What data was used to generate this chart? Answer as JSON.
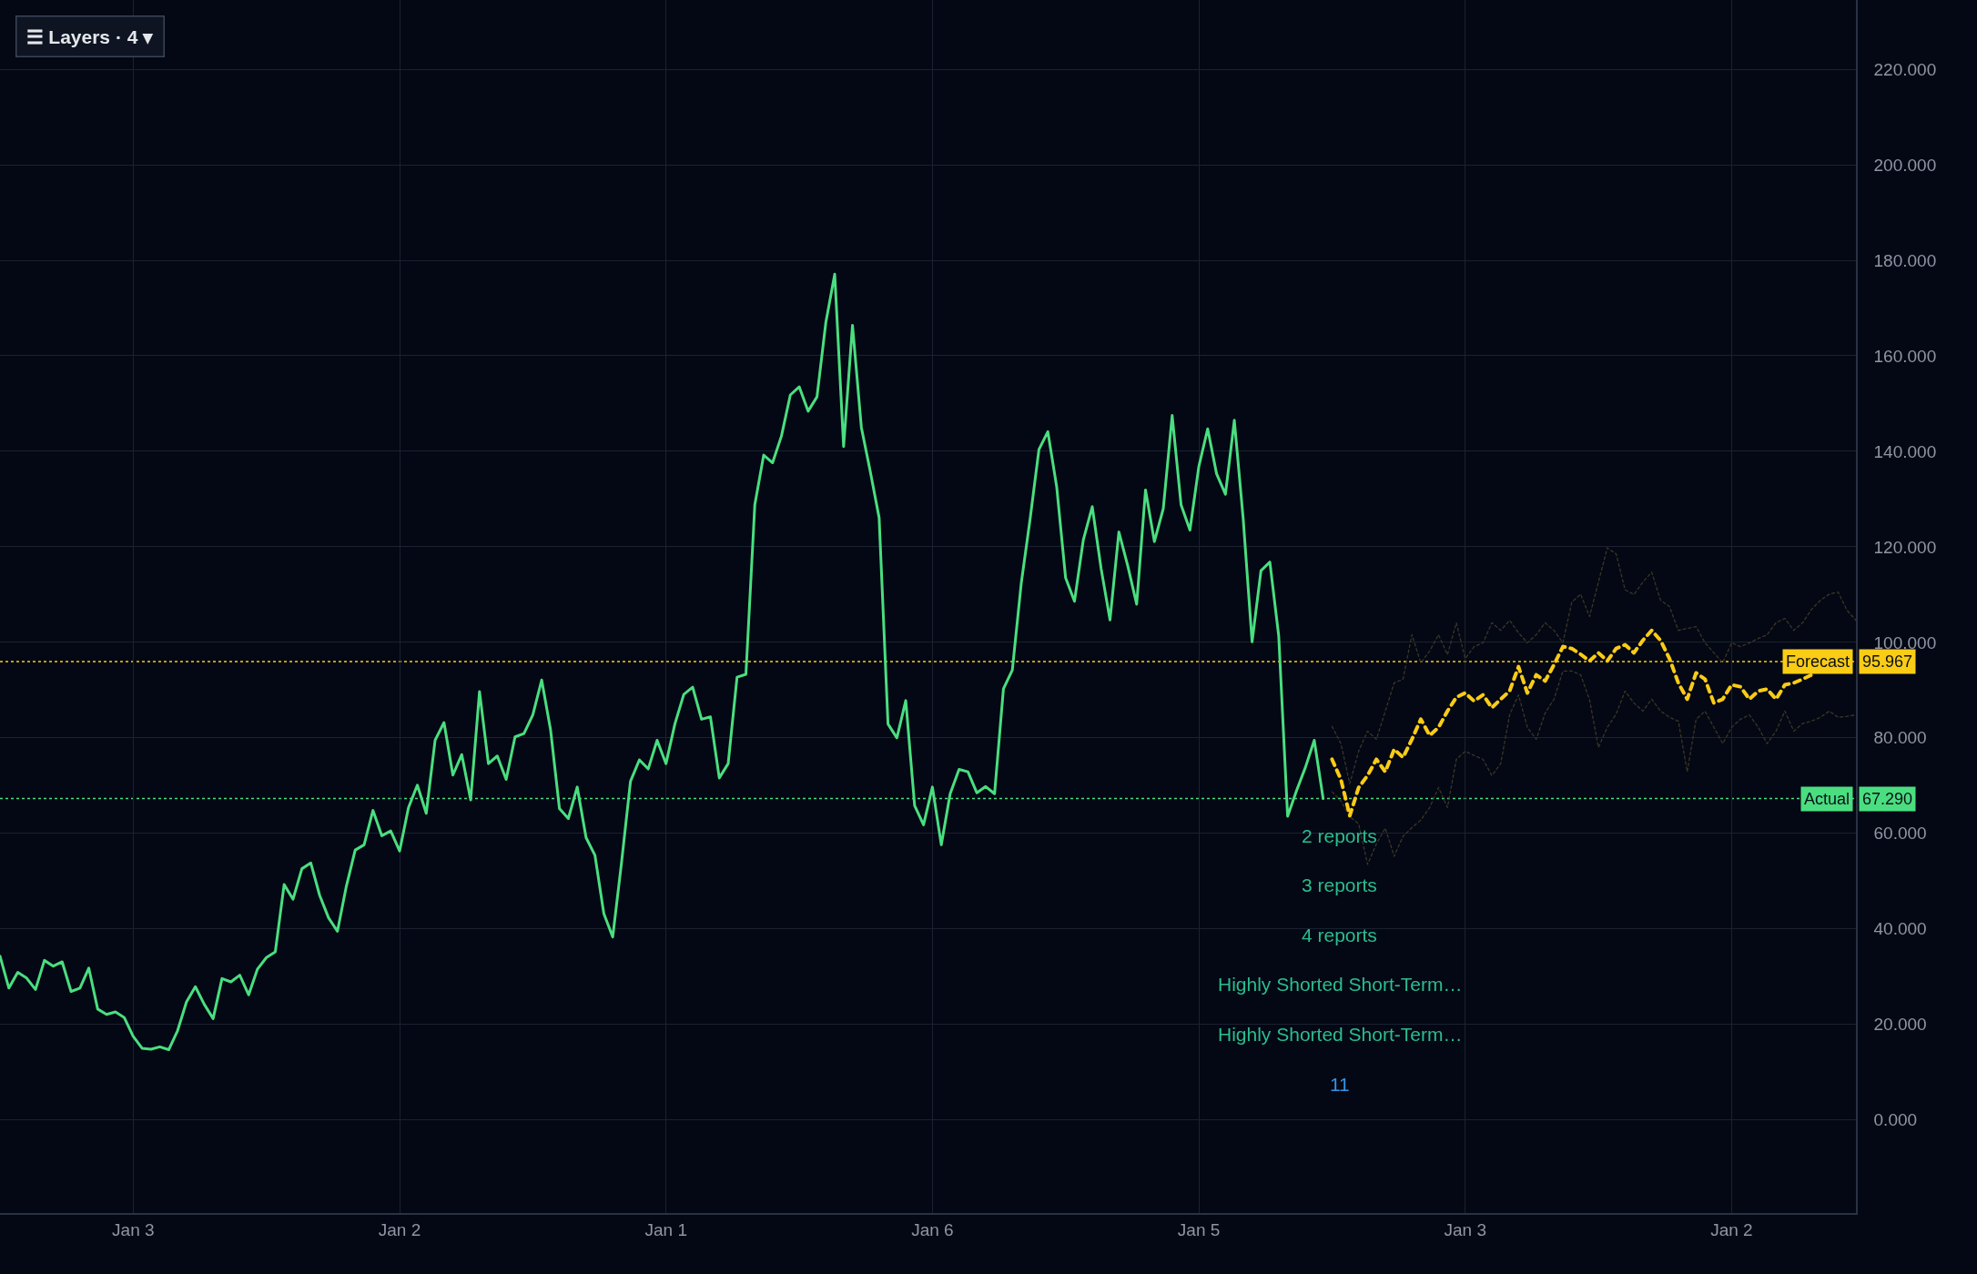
{
  "chart_data": {
    "type": "line",
    "categories": [
      null,
      null,
      null,
      null,
      null,
      null,
      null,
      null,
      null,
      null,
      null,
      null,
      null,
      null,
      null,
      "Jan 3",
      null,
      null,
      null,
      null,
      null,
      null,
      null,
      null,
      null,
      null,
      null,
      null,
      null,
      null,
      null,
      null,
      null,
      null,
      null,
      null,
      null,
      null,
      null,
      null,
      null,
      null,
      null,
      null,
      null,
      "Jan 2",
      null,
      null,
      null,
      null,
      null,
      null,
      null,
      null,
      null,
      null,
      null,
      null,
      null,
      null,
      null,
      null,
      null,
      null,
      null,
      null,
      null,
      null,
      null,
      null,
      null,
      null,
      null,
      null,
      null,
      "Jan 1",
      null,
      null,
      null,
      null,
      null,
      null,
      null,
      null,
      null,
      null,
      null,
      null,
      null,
      null,
      null,
      null,
      null,
      null,
      null,
      null,
      null,
      null,
      null,
      null,
      null,
      null,
      null,
      null,
      null,
      "Jan 6",
      null,
      null,
      null,
      null,
      null,
      null,
      null,
      null,
      null,
      null,
      null,
      null,
      null,
      null,
      null,
      null,
      null,
      null,
      null,
      null,
      null,
      null,
      null,
      null,
      null,
      null,
      null,
      null,
      null,
      "Jan 5",
      null,
      null,
      null,
      null,
      null,
      null,
      null,
      null,
      null,
      null,
      null,
      null,
      null,
      null,
      null,
      null,
      null,
      null,
      null,
      null,
      null,
      null,
      null,
      null,
      null,
      null,
      null,
      null,
      null,
      "Jan 3",
      null,
      null,
      null,
      null,
      null,
      null,
      null,
      null,
      null,
      null,
      null,
      null,
      null,
      null,
      null,
      null,
      null,
      null,
      null,
      null,
      null,
      null,
      null,
      null,
      null,
      null,
      null,
      null,
      null,
      "Jan 2",
      null,
      null,
      null,
      null,
      null,
      null,
      null,
      null,
      null,
      null,
      null,
      null,
      null,
      null
    ],
    "ylim": [
      -19.5,
      234.5
    ],
    "yticks": [
      {
        "value": 0,
        "label": "0.000"
      },
      {
        "value": 20,
        "label": "20.000"
      },
      {
        "value": 40,
        "label": "40.000"
      },
      {
        "value": 60,
        "label": "60.000"
      },
      {
        "value": 80,
        "label": "80.000"
      },
      {
        "value": 100,
        "label": "100.000"
      },
      {
        "value": 120,
        "label": "120.000"
      },
      {
        "value": 140,
        "label": "140.000"
      },
      {
        "value": 160,
        "label": "160.000"
      },
      {
        "value": 180,
        "label": "180.000"
      },
      {
        "value": 200,
        "label": "200.000"
      },
      {
        "value": 220,
        "label": "220.000"
      }
    ],
    "grid": true,
    "series": [
      {
        "color": "#4ade80",
        "line_style": "solid",
        "values": [
          34.3,
          27.6,
          30.9,
          29.7,
          27.3,
          33.4,
          32.2,
          33.1,
          26.9,
          27.6,
          31.8,
          23.2,
          22.1,
          22.6,
          21.4,
          17.5,
          15.0,
          14.8,
          15.3,
          14.7,
          18.7,
          24.7,
          27.9,
          24.2,
          21.2,
          29.6,
          28.9,
          30.3,
          26.2,
          31.6,
          34.0,
          35.2,
          49.3,
          46.2,
          52.6,
          53.8,
          47.0,
          42.3,
          39.5,
          48.9,
          56.5,
          57.6,
          64.8,
          59.5,
          60.5,
          56.3,
          65.4,
          70.1,
          64.2,
          79.5,
          83.2,
          72.2,
          76.5,
          67.0,
          89.7,
          74.6,
          76.2,
          71.3,
          80.2,
          80.9,
          84.8,
          92.1,
          81.7,
          65.2,
          63.1,
          69.7,
          59.1,
          55.4,
          43.2,
          38.3,
          54.0,
          70.9,
          75.4,
          73.5,
          79.5,
          74.6,
          82.9,
          89.1,
          90.6,
          83.9,
          84.4,
          71.6,
          74.6,
          92.7,
          93.3,
          128.8,
          139.2,
          137.6,
          143.2,
          151.8,
          153.5,
          148.4,
          151.4,
          167.0,
          177.1,
          141.0,
          166.4,
          145.0,
          135.8,
          126.1,
          82.9,
          80.0,
          87.8,
          65.8,
          61.8,
          69.7,
          57.6,
          68.3,
          73.4,
          72.9,
          68.5,
          69.8,
          68.3,
          90.3,
          94.2,
          112.3,
          125.8,
          140.4,
          144.1,
          132.5,
          113.5,
          108.6,
          121.5,
          128.4,
          115.4,
          104.7,
          123.1,
          116.0,
          108.0,
          131.9,
          121.1,
          128.0,
          147.5,
          128.8,
          123.5,
          136.8,
          144.7,
          135.3,
          131.0,
          146.5,
          125.8,
          100.1,
          115.0,
          116.8,
          101.3,
          63.6,
          68.9,
          73.8,
          79.5,
          67.3,
          null,
          null,
          null,
          null,
          null,
          null,
          null,
          null,
          null,
          null,
          null,
          null,
          null,
          null,
          null,
          null,
          null,
          null,
          null,
          null,
          null,
          null,
          null,
          null,
          null,
          null,
          null,
          null,
          null,
          null,
          null,
          null,
          null,
          null,
          null,
          null,
          null,
          null,
          null,
          null,
          null,
          null,
          null,
          null,
          null,
          null,
          null,
          null,
          null,
          null,
          null,
          null,
          null,
          null,
          null,
          null,
          null,
          null,
          null,
          null
        ]
      },
      {
        "color": "#3a3626",
        "line_style": "dotted",
        "values": [
          null,
          null,
          null,
          null,
          null,
          null,
          null,
          null,
          null,
          null,
          null,
          null,
          null,
          null,
          null,
          null,
          null,
          null,
          null,
          null,
          null,
          null,
          null,
          null,
          null,
          null,
          null,
          null,
          null,
          null,
          null,
          null,
          null,
          null,
          null,
          null,
          null,
          null,
          null,
          null,
          null,
          null,
          null,
          null,
          null,
          null,
          null,
          null,
          null,
          null,
          null,
          null,
          null,
          null,
          null,
          null,
          null,
          null,
          null,
          null,
          null,
          null,
          null,
          null,
          null,
          null,
          null,
          null,
          null,
          null,
          null,
          null,
          null,
          null,
          null,
          null,
          null,
          null,
          null,
          null,
          null,
          null,
          null,
          null,
          null,
          null,
          null,
          null,
          null,
          null,
          null,
          null,
          null,
          null,
          null,
          null,
          null,
          null,
          null,
          null,
          null,
          null,
          null,
          null,
          null,
          null,
          null,
          null,
          null,
          null,
          null,
          null,
          null,
          null,
          null,
          null,
          null,
          null,
          null,
          null,
          null,
          null,
          null,
          null,
          null,
          null,
          null,
          null,
          null,
          null,
          null,
          null,
          null,
          null,
          null,
          null,
          null,
          null,
          null,
          null,
          null,
          null,
          null,
          null,
          null,
          null,
          null,
          null,
          null,
          null,
          82.4,
          78.8,
          70.4,
          77.2,
          81.4,
          79.7,
          85.6,
          91.5,
          92.3,
          101.6,
          95.7,
          98.2,
          101.6,
          97.4,
          104.1,
          96.6,
          99.1,
          99.9,
          104.1,
          102.5,
          104.6,
          102.0,
          99.9,
          101.6,
          104.1,
          102.5,
          99.9,
          108.4,
          110.1,
          105.4,
          112.6,
          119.8,
          118.5,
          111.0,
          110.0,
          112.6,
          114.7,
          108.8,
          107.5,
          102.5,
          102.9,
          103.3,
          99.9,
          97.8,
          95.7,
          99.9,
          99.1,
          99.9,
          100.8,
          101.6,
          104.1,
          105.0,
          102.5,
          104.1,
          106.9,
          108.8,
          110.1,
          110.5,
          106.7,
          104.6
        ]
      },
      {
        "color": "#3a3626",
        "line_style": "dotted",
        "values": [
          null,
          null,
          null,
          null,
          null,
          null,
          null,
          null,
          null,
          null,
          null,
          null,
          null,
          null,
          null,
          null,
          null,
          null,
          null,
          null,
          null,
          null,
          null,
          null,
          null,
          null,
          null,
          null,
          null,
          null,
          null,
          null,
          null,
          null,
          null,
          null,
          null,
          null,
          null,
          null,
          null,
          null,
          null,
          null,
          null,
          null,
          null,
          null,
          null,
          null,
          null,
          null,
          null,
          null,
          null,
          null,
          null,
          null,
          null,
          null,
          null,
          null,
          null,
          null,
          null,
          null,
          null,
          null,
          null,
          null,
          null,
          null,
          null,
          null,
          null,
          null,
          null,
          null,
          null,
          null,
          null,
          null,
          null,
          null,
          null,
          null,
          null,
          null,
          null,
          null,
          null,
          null,
          null,
          null,
          null,
          null,
          null,
          null,
          null,
          null,
          null,
          null,
          null,
          null,
          null,
          null,
          null,
          null,
          null,
          null,
          null,
          null,
          null,
          null,
          null,
          null,
          null,
          null,
          null,
          null,
          null,
          null,
          null,
          null,
          null,
          null,
          null,
          null,
          null,
          null,
          null,
          null,
          null,
          null,
          null,
          null,
          null,
          null,
          null,
          null,
          null,
          null,
          null,
          null,
          null,
          null,
          null,
          null,
          null,
          null,
          68.7,
          66.8,
          63.5,
          62.0,
          53.5,
          57.8,
          61.1,
          55.2,
          59.4,
          61.2,
          62.8,
          65.4,
          69.6,
          65.4,
          75.5,
          77.2,
          76.3,
          75.5,
          72.1,
          74.6,
          84.8,
          89.0,
          82.2,
          79.7,
          85.2,
          88.1,
          94.0,
          94.0,
          93.2,
          88.0,
          78.0,
          82.2,
          85.0,
          89.8,
          87.3,
          85.6,
          88.1,
          85.6,
          84.3,
          83.5,
          72.9,
          83.9,
          85.6,
          82.2,
          78.8,
          82.2,
          83.9,
          84.8,
          82.2,
          78.8,
          81.4,
          85.6,
          81.4,
          83.0,
          83.5,
          84.3,
          85.6,
          84.3,
          84.5,
          84.8
        ]
      },
      {
        "color": "#facc15",
        "line_style": "dashed",
        "values": [
          null,
          null,
          null,
          null,
          null,
          null,
          null,
          null,
          null,
          null,
          null,
          null,
          null,
          null,
          null,
          null,
          null,
          null,
          null,
          null,
          null,
          null,
          null,
          null,
          null,
          null,
          null,
          null,
          null,
          null,
          null,
          null,
          null,
          null,
          null,
          null,
          null,
          null,
          null,
          null,
          null,
          null,
          null,
          null,
          null,
          null,
          null,
          null,
          null,
          null,
          null,
          null,
          null,
          null,
          null,
          null,
          null,
          null,
          null,
          null,
          null,
          null,
          null,
          null,
          null,
          null,
          null,
          null,
          null,
          null,
          null,
          null,
          null,
          null,
          null,
          null,
          null,
          null,
          null,
          null,
          null,
          null,
          null,
          null,
          null,
          null,
          null,
          null,
          null,
          null,
          null,
          null,
          null,
          null,
          null,
          null,
          null,
          null,
          null,
          null,
          null,
          null,
          null,
          null,
          null,
          null,
          null,
          null,
          null,
          null,
          null,
          null,
          null,
          null,
          null,
          null,
          null,
          null,
          null,
          null,
          null,
          null,
          null,
          null,
          null,
          null,
          null,
          null,
          null,
          null,
          null,
          null,
          null,
          null,
          null,
          null,
          null,
          null,
          null,
          null,
          null,
          null,
          null,
          null,
          null,
          null,
          null,
          null,
          null,
          null,
          75.5,
          71.3,
          63.7,
          69.6,
          72.1,
          75.5,
          72.9,
          77.6,
          75.9,
          79.7,
          83.9,
          80.5,
          82.2,
          85.6,
          88.5,
          89.4,
          87.7,
          89.0,
          86.3,
          88.1,
          89.8,
          94.9,
          89.4,
          93.2,
          91.9,
          95.3,
          99.1,
          98.7,
          97.5,
          96.1,
          97.8,
          96.1,
          98.7,
          99.5,
          97.8,
          100.4,
          102.5,
          100.4,
          96.6,
          91.5,
          88.1,
          93.6,
          92.3,
          87.3,
          88.1,
          91.1,
          90.7,
          88.1,
          89.8,
          90.2,
          88.1,
          91.1,
          91.5,
          92.3,
          93.2,
          null,
          null,
          null,
          null,
          null
        ]
      }
    ],
    "ref_lines": [
      {
        "axis": "y",
        "value": 95.967,
        "label": "Forecast",
        "color": "#facc15",
        "line_style": "dotted"
      },
      {
        "axis": "y",
        "value": 67.29,
        "label": "Actual",
        "color": "#4ade80",
        "line_style": "dotted"
      }
    ],
    "annotations": [
      "☰ Layers · 4 ▾",
      "2 reports",
      "3 reports",
      "4 reports",
      "Highly Shorted Short-Term…",
      "Highly Shorted Short-Term…",
      "11",
      "95.967",
      "67.290"
    ]
  }
}
